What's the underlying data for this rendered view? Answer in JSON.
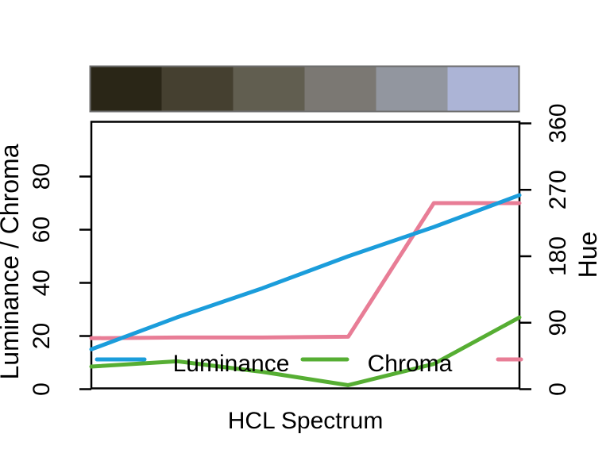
{
  "figure": {
    "background": "#FFFFFF",
    "box_color": "#000000",
    "palette_border_color": "#6E6E6E"
  },
  "chart_data": {
    "type": "line",
    "title": "",
    "xlabel": "HCL Spectrum",
    "ylabel_left": "Luminance / Chroma",
    "ylabel_right": "Hue",
    "x": [
      1,
      2,
      3,
      4,
      5,
      6
    ],
    "left_axis": {
      "range": [
        0,
        100
      ],
      "ticks": [
        0,
        20,
        40,
        60,
        80
      ]
    },
    "right_axis": {
      "range": [
        0,
        360
      ],
      "ticks": [
        0,
        90,
        180,
        270,
        360
      ]
    },
    "series": [
      {
        "name": "Luminance",
        "axis": "left",
        "color": "#1B9DDB",
        "values": [
          15,
          27,
          38,
          50,
          61,
          73
        ]
      },
      {
        "name": "Chroma",
        "axis": "left",
        "color": "#56AE33",
        "values": [
          8.5,
          10.5,
          6.5,
          1.5,
          9.5,
          27
        ]
      },
      {
        "name": "Hue",
        "axis": "right",
        "color": "#E87D96",
        "values": [
          69,
          70,
          70,
          71,
          252,
          252
        ]
      }
    ],
    "palette_swatches": [
      "#2A2617",
      "#454030",
      "#615E50",
      "#7B7873",
      "#92969F",
      "#ACB4D6"
    ],
    "legend": {
      "position": "bottom-inside",
      "items": [
        {
          "label": "Luminance",
          "color": "#1B9DDB"
        },
        {
          "label": "Chroma",
          "color": "#56AE33"
        },
        {
          "label": "",
          "color": "#E87D96"
        }
      ]
    },
    "layout_hints": {
      "grid": "off",
      "palette_bar": "top",
      "hue_axis_side": "right"
    }
  }
}
